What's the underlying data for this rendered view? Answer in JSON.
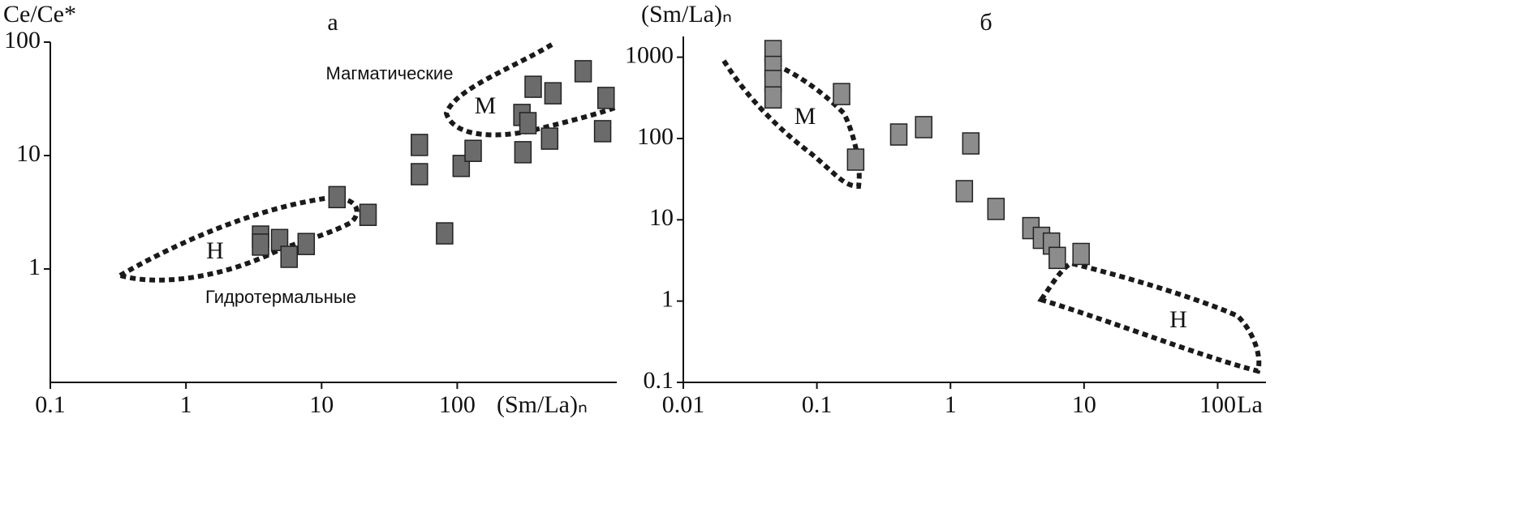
{
  "chart_data": [
    {
      "type": "scatter",
      "title": "а",
      "x_label": "(Sm/La)ₙ",
      "y_label": "Ce/Ce*",
      "xscale": "log",
      "yscale": "log",
      "color": "#6b6b6b",
      "xlim": [
        0.1,
        1500
      ],
      "ylim": [
        0.1,
        100
      ],
      "xticks": [
        0.1,
        1,
        10,
        100
      ],
      "yticks": [
        1,
        10,
        100
      ],
      "x": [
        22,
        13,
        3.55,
        3.55,
        4.9,
        5.76,
        7.7,
        52.6,
        52.6,
        107,
        131,
        80.7,
        300,
        332,
        305,
        363,
        508,
        480,
        848,
        1250,
        1180
      ],
      "values": [
        3,
        4.3,
        1.93,
        1.64,
        1.8,
        1.28,
        1.66,
        12.4,
        6.85,
        8.1,
        11,
        2.06,
        22.8,
        19.3,
        10.7,
        40.4,
        35.4,
        14.1,
        55.4,
        32.2,
        16.4
      ],
      "annotations": [
        "Магматические",
        "М",
        "Гидротермальные",
        "Н"
      ]
    },
    {
      "type": "scatter",
      "title": "б",
      "x_label": "La",
      "y_label": "(Sm/La)ₙ",
      "xscale": "log",
      "yscale": "log",
      "color": "#8c8c8c",
      "xlim": [
        0.01,
        230
      ],
      "ylim": [
        0.1,
        1800
      ],
      "xticks": [
        0.01,
        0.1,
        1,
        10,
        100
      ],
      "yticks": [
        0.1,
        1,
        10,
        100,
        1000
      ],
      "x": [
        0.047,
        0.047,
        0.047,
        0.047,
        0.153,
        0.195,
        0.41,
        0.63,
        1.42,
        1.27,
        2.19,
        4.0,
        4.8,
        5.7,
        6.3,
        9.5
      ],
      "values": [
        1190,
        760,
        510,
        320,
        352,
        55,
        112,
        138,
        87,
        22.5,
        13.6,
        7.9,
        6,
        5.1,
        3.4,
        3.8
      ],
      "annotations": [
        "М",
        "Н"
      ]
    }
  ]
}
